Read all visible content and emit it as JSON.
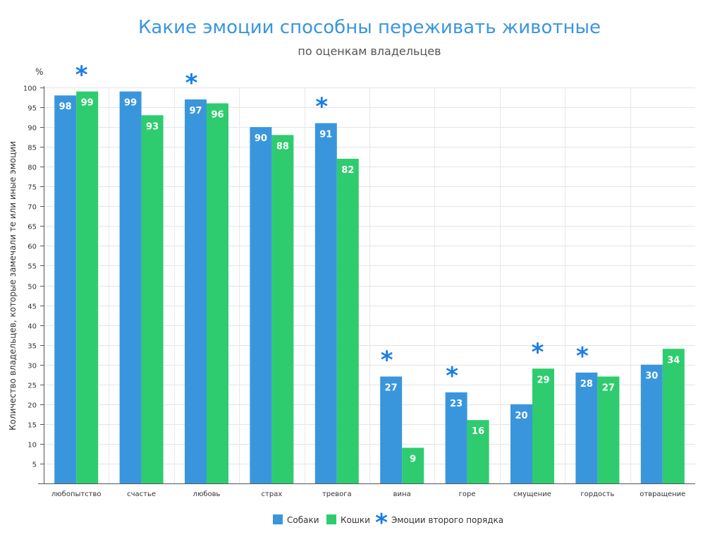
{
  "chart_data": {
    "type": "bar",
    "title": "Какие эмоции способны переживать животные",
    "subtitle": "по оценкам владельцев",
    "unit": "%",
    "ylabel": "Количество владельцев, которые замечали те или иные эмоции",
    "xlabel": "",
    "ylim": [
      0,
      100
    ],
    "yticks": [
      5,
      10,
      15,
      20,
      25,
      30,
      35,
      40,
      45,
      50,
      55,
      60,
      65,
      70,
      75,
      80,
      85,
      90,
      95,
      100
    ],
    "grid": true,
    "categories": [
      "любопытство",
      "счастье",
      "любовь",
      "страх",
      "тревога",
      "вина",
      "горе",
      "смущение",
      "гордость",
      "отвращение"
    ],
    "series": [
      {
        "name": "Собаки",
        "color": "#3a96dc",
        "values": [
          98,
          99,
          97,
          90,
          91,
          27,
          23,
          20,
          28,
          30
        ]
      },
      {
        "name": "Кошки",
        "color": "#2ecc6e",
        "values": [
          99,
          93,
          96,
          88,
          82,
          9,
          16,
          29,
          27,
          34
        ]
      }
    ],
    "second_order": [
      true,
      false,
      true,
      false,
      true,
      true,
      true,
      true,
      true,
      false
    ],
    "marker": {
      "symbol": "*",
      "color": "#1a7ee6"
    },
    "legend": {
      "position": "bottom-center",
      "marker_label": "Эмоции второго порядка"
    }
  }
}
